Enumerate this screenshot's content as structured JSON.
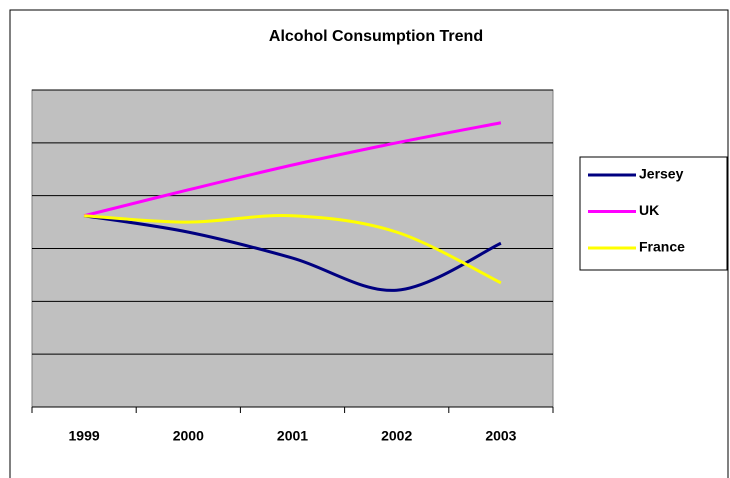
{
  "chart_data": {
    "type": "line",
    "title": "Alcohol Consumption Trend",
    "categories": [
      "1999",
      "2000",
      "2001",
      "2002",
      "2003"
    ],
    "series": [
      {
        "name": "Jersey",
        "color": "#000080",
        "values": [
          3.62,
          3.31,
          2.82,
          2.21,
          3.1
        ]
      },
      {
        "name": "UK",
        "color": "#ff00ff",
        "values": [
          3.62,
          4.11,
          4.58,
          5.0,
          5.38
        ]
      },
      {
        "name": "France",
        "color": "#ffff00",
        "values": [
          3.62,
          3.5,
          3.62,
          3.31,
          2.35
        ]
      }
    ],
    "ylim": [
      0,
      6
    ],
    "yticks": [
      0,
      1,
      2,
      3,
      4,
      5,
      6
    ],
    "grid": true,
    "smooth": true,
    "legend": "right",
    "plot_background": "#c0c0c0"
  }
}
